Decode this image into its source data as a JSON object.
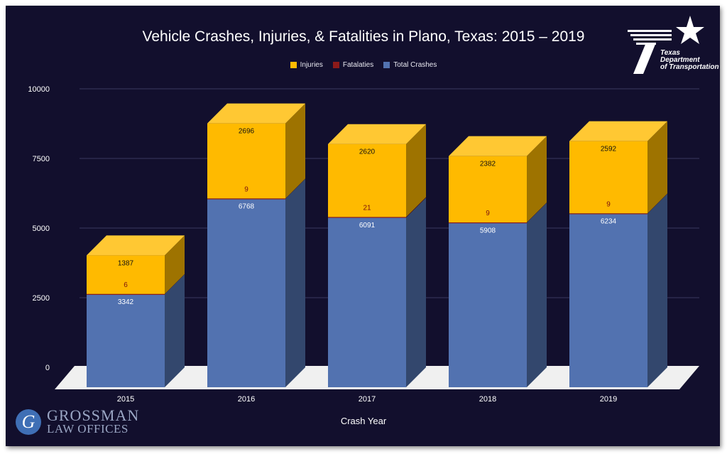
{
  "header": {
    "title": "Vehicle Crashes, Injuries, & Fatalities in Plano, Texas: 2015 – 2019"
  },
  "logos": {
    "txdot": {
      "line1": "Texas",
      "line2": "Department",
      "line3": "of Transportation"
    },
    "firm": {
      "letter": "G",
      "line1": "GROSSMAN",
      "line2": "LAW OFFICES"
    }
  },
  "colors": {
    "background": "#120f2d",
    "total_crashes": "#5272b0",
    "fatalities": "#8b1a1a",
    "injuries": "#ffba00"
  },
  "chart_data": {
    "type": "bar",
    "stacked": true,
    "three_d": true,
    "title": "Vehicle Crashes, Injuries, & Fatalities in Plano, Texas: 2015 – 2019",
    "xlabel": "Crash Year",
    "ylabel": "",
    "categories": [
      "2015",
      "2016",
      "2017",
      "2018",
      "2019"
    ],
    "ylim": [
      0,
      10000
    ],
    "yticks": [
      0,
      2500,
      5000,
      7500,
      10000
    ],
    "grid": true,
    "legend_position": "top-center",
    "legend": [
      "Injuries",
      "Fatalaties",
      "Total Crashes"
    ],
    "series": [
      {
        "name": "Total Crashes",
        "values": [
          3342,
          6768,
          6091,
          5908,
          6234
        ]
      },
      {
        "name": "Fatalaties",
        "values": [
          6,
          9,
          21,
          9,
          9
        ]
      },
      {
        "name": "Injuries",
        "values": [
          1387,
          2696,
          2620,
          2382,
          2592
        ]
      }
    ]
  }
}
